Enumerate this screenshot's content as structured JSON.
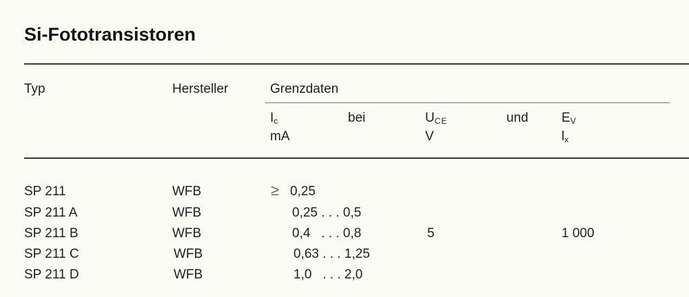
{
  "title": "Si-Fototransistoren",
  "header": {
    "typ": "Typ",
    "hersteller": "Hersteller",
    "grenzdaten": "Grenzdaten",
    "ic_symbol": "I",
    "ic_sub": "c",
    "ic_unit": "mA",
    "bei": "bei",
    "uce_symbol": "U",
    "uce_sub": "CE",
    "uce_unit": "V",
    "und": "und",
    "ev_symbol": "E",
    "ev_sub": "V",
    "ev_unit_symbol": "l",
    "ev_unit_sub": "x"
  },
  "rows": [
    {
      "typ": "SP 211",
      "hersteller": "WFB",
      "ic_prefix": "≥",
      "ic": "0,25"
    },
    {
      "typ": "SP 211 A",
      "hersteller": "WFB",
      "ic": "0,25 . . . 0,5"
    },
    {
      "typ": "SP 211 B",
      "hersteller": "WFB",
      "ic": "0,4   . . . 0,8"
    },
    {
      "typ": "SP 211 C",
      "hersteller": "WFB",
      "ic": "0,63 . . . 1,25"
    },
    {
      "typ": "SP 211 D",
      "hersteller": "WFB",
      "ic": "1,0   . . . 2,0"
    }
  ],
  "shared": {
    "uce": "5",
    "ev": "1 000"
  }
}
